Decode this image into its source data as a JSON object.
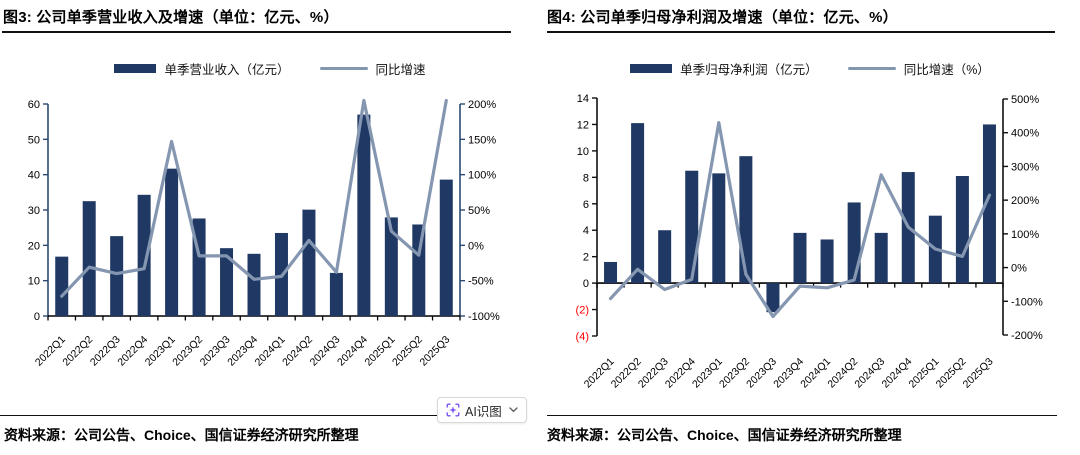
{
  "colors": {
    "bar": "#1f3864",
    "line": "#8496b0",
    "negative_tick_label": "#ff0000",
    "axis": "#000000"
  },
  "ai_tool": {
    "label": "AI识图"
  },
  "panels": [
    {
      "title": "图3: 公司单季营业收入及增速（单位：亿元、%）",
      "legend": {
        "bar_label": "单季营业收入（亿元）",
        "line_label": "同比增速"
      },
      "source": "资料来源：公司公告、Choice、国信证券经济研究所整理",
      "chart_data": {
        "type": "bar+line combo",
        "categories": [
          "2022Q1",
          "2022Q2",
          "2022Q3",
          "2022Q4",
          "2023Q1",
          "2023Q2",
          "2023Q3",
          "2023Q4",
          "2024Q1",
          "2024Q2",
          "2024Q3",
          "2024Q4",
          "2025Q1",
          "2025Q2",
          "2025Q3"
        ],
        "series": [
          {
            "name": "单季营业收入（亿元）",
            "type": "bar",
            "axis": "left",
            "values": [
              16.8,
              32.5,
              22.6,
              34.3,
              41.7,
              27.6,
              19.2,
              17.6,
              23.5,
              30.1,
              12.2,
              57.0,
              27.9,
              25.9,
              38.6
            ]
          },
          {
            "name": "同比增速",
            "type": "line",
            "axis": "right",
            "unit": "%",
            "values": [
              -72,
              -31,
              -40,
              -33,
              147,
              -15,
              -15,
              -48,
              -44,
              7,
              -38,
              205,
              20,
              -14,
              205
            ]
          }
        ],
        "left_axis": {
          "range": [
            0,
            60
          ],
          "ticks": [
            60,
            50,
            40,
            30,
            20,
            10,
            0
          ],
          "tick_labels": [
            "60",
            "50",
            "40",
            "30",
            "20",
            "10",
            "0"
          ]
        },
        "right_axis": {
          "range": [
            -100,
            200
          ],
          "ticks": [
            200,
            150,
            100,
            50,
            0,
            -50,
            -100
          ],
          "tick_labels": [
            "200%",
            "150%",
            "100%",
            "50%",
            "0%",
            "-50%",
            "-100%"
          ]
        },
        "grid": false,
        "legend_position": "top"
      }
    },
    {
      "title": "图4: 公司单季归母净利润及增速（单位：亿元、%）",
      "legend": {
        "bar_label": "单季归母净利润（亿元）",
        "line_label": "同比增速（%）"
      },
      "source": "资料来源：公司公告、Choice、国信证券经济研究所整理",
      "chart_data": {
        "type": "bar+line combo",
        "categories": [
          "2022Q1",
          "2022Q2",
          "2022Q3",
          "2022Q4",
          "2023Q1",
          "2023Q2",
          "2023Q3",
          "2023Q4",
          "2024Q1",
          "2024Q2",
          "2024Q3",
          "2024Q4",
          "2025Q1",
          "2025Q2",
          "2025Q3"
        ],
        "series": [
          {
            "name": "单季归母净利润（亿元）",
            "type": "bar",
            "axis": "left",
            "values": [
              1.6,
              12.1,
              4.0,
              8.5,
              8.3,
              9.6,
              -2.2,
              3.8,
              3.3,
              6.1,
              3.8,
              8.4,
              5.1,
              8.1,
              12.0
            ]
          },
          {
            "name": "同比增速（%）",
            "type": "line",
            "axis": "right",
            "unit": "%",
            "values": [
              -92,
              -5,
              -65,
              -35,
              430,
              -20,
              -145,
              -55,
              -60,
              -37,
              275,
              120,
              55,
              33,
              215
            ]
          }
        ],
        "left_axis": {
          "range": [
            -4,
            14
          ],
          "ticks": [
            14,
            12,
            10,
            8,
            6,
            4,
            2,
            0,
            -2,
            -4
          ],
          "tick_labels": [
            "14",
            "12",
            "10",
            "8",
            "6",
            "4",
            "2",
            "0",
            "(2)",
            "(4)"
          ],
          "negative_format": "parentheses-red"
        },
        "right_axis": {
          "range": [
            -200,
            500
          ],
          "ticks": [
            500,
            400,
            300,
            200,
            100,
            0,
            -100,
            -200
          ],
          "tick_labels": [
            "500%",
            "400%",
            "300%",
            "200%",
            "100%",
            "0%",
            "-100%",
            "-200%"
          ]
        },
        "grid": false,
        "legend_position": "top"
      }
    }
  ]
}
